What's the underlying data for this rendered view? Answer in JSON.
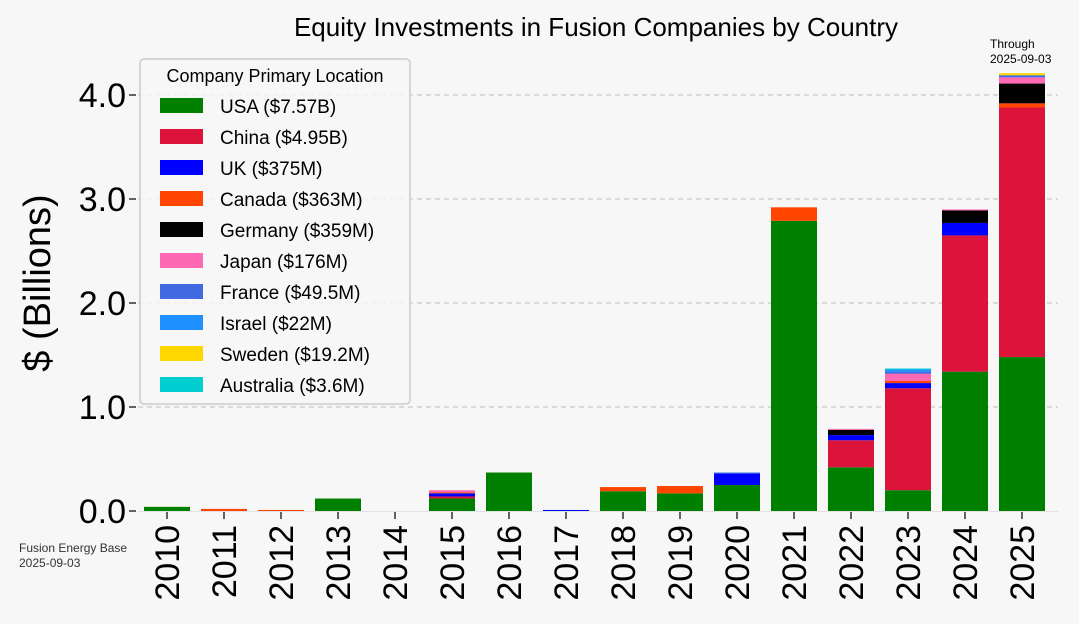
{
  "chart_data": {
    "type": "bar",
    "stacked": true,
    "title": "Equity Investments in Fusion Companies by Country",
    "ylabel": "$ (Billions)",
    "xlabel": "",
    "ylim": [
      0,
      4.3
    ],
    "yticks": [
      "0.0",
      "1.0",
      "2.0",
      "3.0",
      "4.0"
    ],
    "ytick_values": [
      0,
      1,
      2,
      3,
      4
    ],
    "grid": "horizontal dashed",
    "categories": [
      "2010",
      "2011",
      "2012",
      "2013",
      "2014",
      "2015",
      "2016",
      "2017",
      "2018",
      "2019",
      "2020",
      "2021",
      "2022",
      "2023",
      "2024",
      "2025"
    ],
    "legend_title": "Company Primary Location",
    "legend_position": "upper-left",
    "series": [
      {
        "name": "USA ($7.57B)",
        "color": "#008000",
        "values": [
          0.04,
          0,
          0,
          0.12,
          0,
          0.12,
          0.37,
          0,
          0.19,
          0.17,
          0.25,
          2.79,
          0.42,
          0.2,
          1.34,
          1.48
        ]
      },
      {
        "name": "China ($4.95B)",
        "color": "#dc143c",
        "values": [
          0,
          0,
          0,
          0,
          0,
          0.02,
          0,
          0,
          0,
          0,
          0,
          0,
          0.26,
          0.98,
          1.31,
          2.4
        ]
      },
      {
        "name": "UK ($375M)",
        "color": "#0000ff",
        "values": [
          0,
          0,
          0,
          0,
          0,
          0.03,
          0,
          0.01,
          0,
          0,
          0.11,
          0,
          0.05,
          0.05,
          0.12,
          0
        ]
      },
      {
        "name": "Canada ($363M)",
        "color": "#ff4500",
        "values": [
          0,
          0.02,
          0.01,
          0,
          0,
          0.01,
          0,
          0,
          0.04,
          0.07,
          0,
          0.13,
          0,
          0.02,
          0,
          0.04
        ]
      },
      {
        "name": "Germany ($359M)",
        "color": "#000000",
        "values": [
          0,
          0,
          0,
          0,
          0,
          0,
          0,
          0,
          0,
          0,
          0,
          0,
          0.05,
          0,
          0.12,
          0.19
        ]
      },
      {
        "name": "Japan ($176M)",
        "color": "#ff69b4",
        "values": [
          0,
          0,
          0,
          0,
          0,
          0.02,
          0,
          0,
          0,
          0,
          0,
          0,
          0.01,
          0.07,
          0.01,
          0.06
        ]
      },
      {
        "name": "France ($49.5M)",
        "color": "#4169e1",
        "values": [
          0,
          0,
          0,
          0,
          0,
          0,
          0,
          0,
          0,
          0,
          0.01,
          0,
          0,
          0.02,
          0,
          0.02
        ]
      },
      {
        "name": "Israel ($22M)",
        "color": "#1e90ff",
        "values": [
          0,
          0,
          0,
          0,
          0,
          0,
          0,
          0,
          0,
          0,
          0,
          0,
          0,
          0.02,
          0,
          0
        ]
      },
      {
        "name": "Sweden ($19.2M)",
        "color": "#ffd700",
        "values": [
          0,
          0,
          0,
          0,
          0,
          0,
          0,
          0,
          0,
          0,
          0,
          0,
          0,
          0,
          0,
          0.02
        ]
      },
      {
        "name": "Australia ($3.6M)",
        "color": "#00ced1",
        "values": [
          0,
          0,
          0,
          0,
          0,
          0,
          0,
          0,
          0,
          0,
          0,
          0,
          0,
          0.01,
          0,
          0
        ]
      }
    ],
    "annotations": {
      "through_line1": "Through",
      "through_line2": "2025-09-03",
      "source_line1": "Fusion Energy Base",
      "source_line2": "2025-09-03"
    }
  }
}
